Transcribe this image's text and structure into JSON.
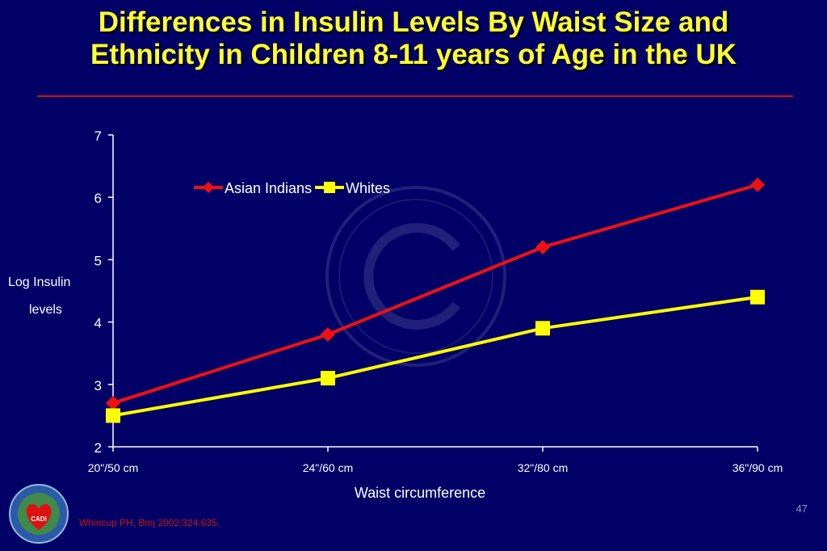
{
  "slide": {
    "title_line1": "Differences in Insulin Levels By Waist Size and",
    "title_line2": "Ethnicity in Children 8-11 years of Age in the UK",
    "citation": "Whincup PH, Bmj 2002;324:635.",
    "page_number": "47",
    "logo_icon": "cadi-research-foundation-logo",
    "logo_text": "CADI RESEARCH FOUNDATION",
    "watermark_icon": "copyright-watermark-icon",
    "colors": {
      "background": "#000066",
      "title": "#ffff33",
      "rule": "#cc1111",
      "axis": "#ffffff",
      "citation": "#cc1111"
    }
  },
  "chart_data": {
    "type": "line",
    "categories": [
      "20\"/50 cm",
      "24\"/60 cm",
      "32\"/80 cm",
      "36\"/90 cm"
    ],
    "series": [
      {
        "name": "Asian Indians",
        "values": [
          2.7,
          3.8,
          5.2,
          6.2
        ],
        "color": "#ee1111",
        "marker": "diamond"
      },
      {
        "name": "Whites",
        "values": [
          2.5,
          3.1,
          3.9,
          4.4
        ],
        "color": "#ffff00",
        "marker": "square"
      }
    ],
    "title": "",
    "xlabel": "Waist circumference",
    "ylabel_line1": "Log Insulin",
    "ylabel_line2": "levels",
    "ylim": [
      2,
      7
    ],
    "yticks": [
      "2",
      "3",
      "4",
      "5",
      "6",
      "7"
    ],
    "grid": false,
    "legend_position": "top-left"
  }
}
